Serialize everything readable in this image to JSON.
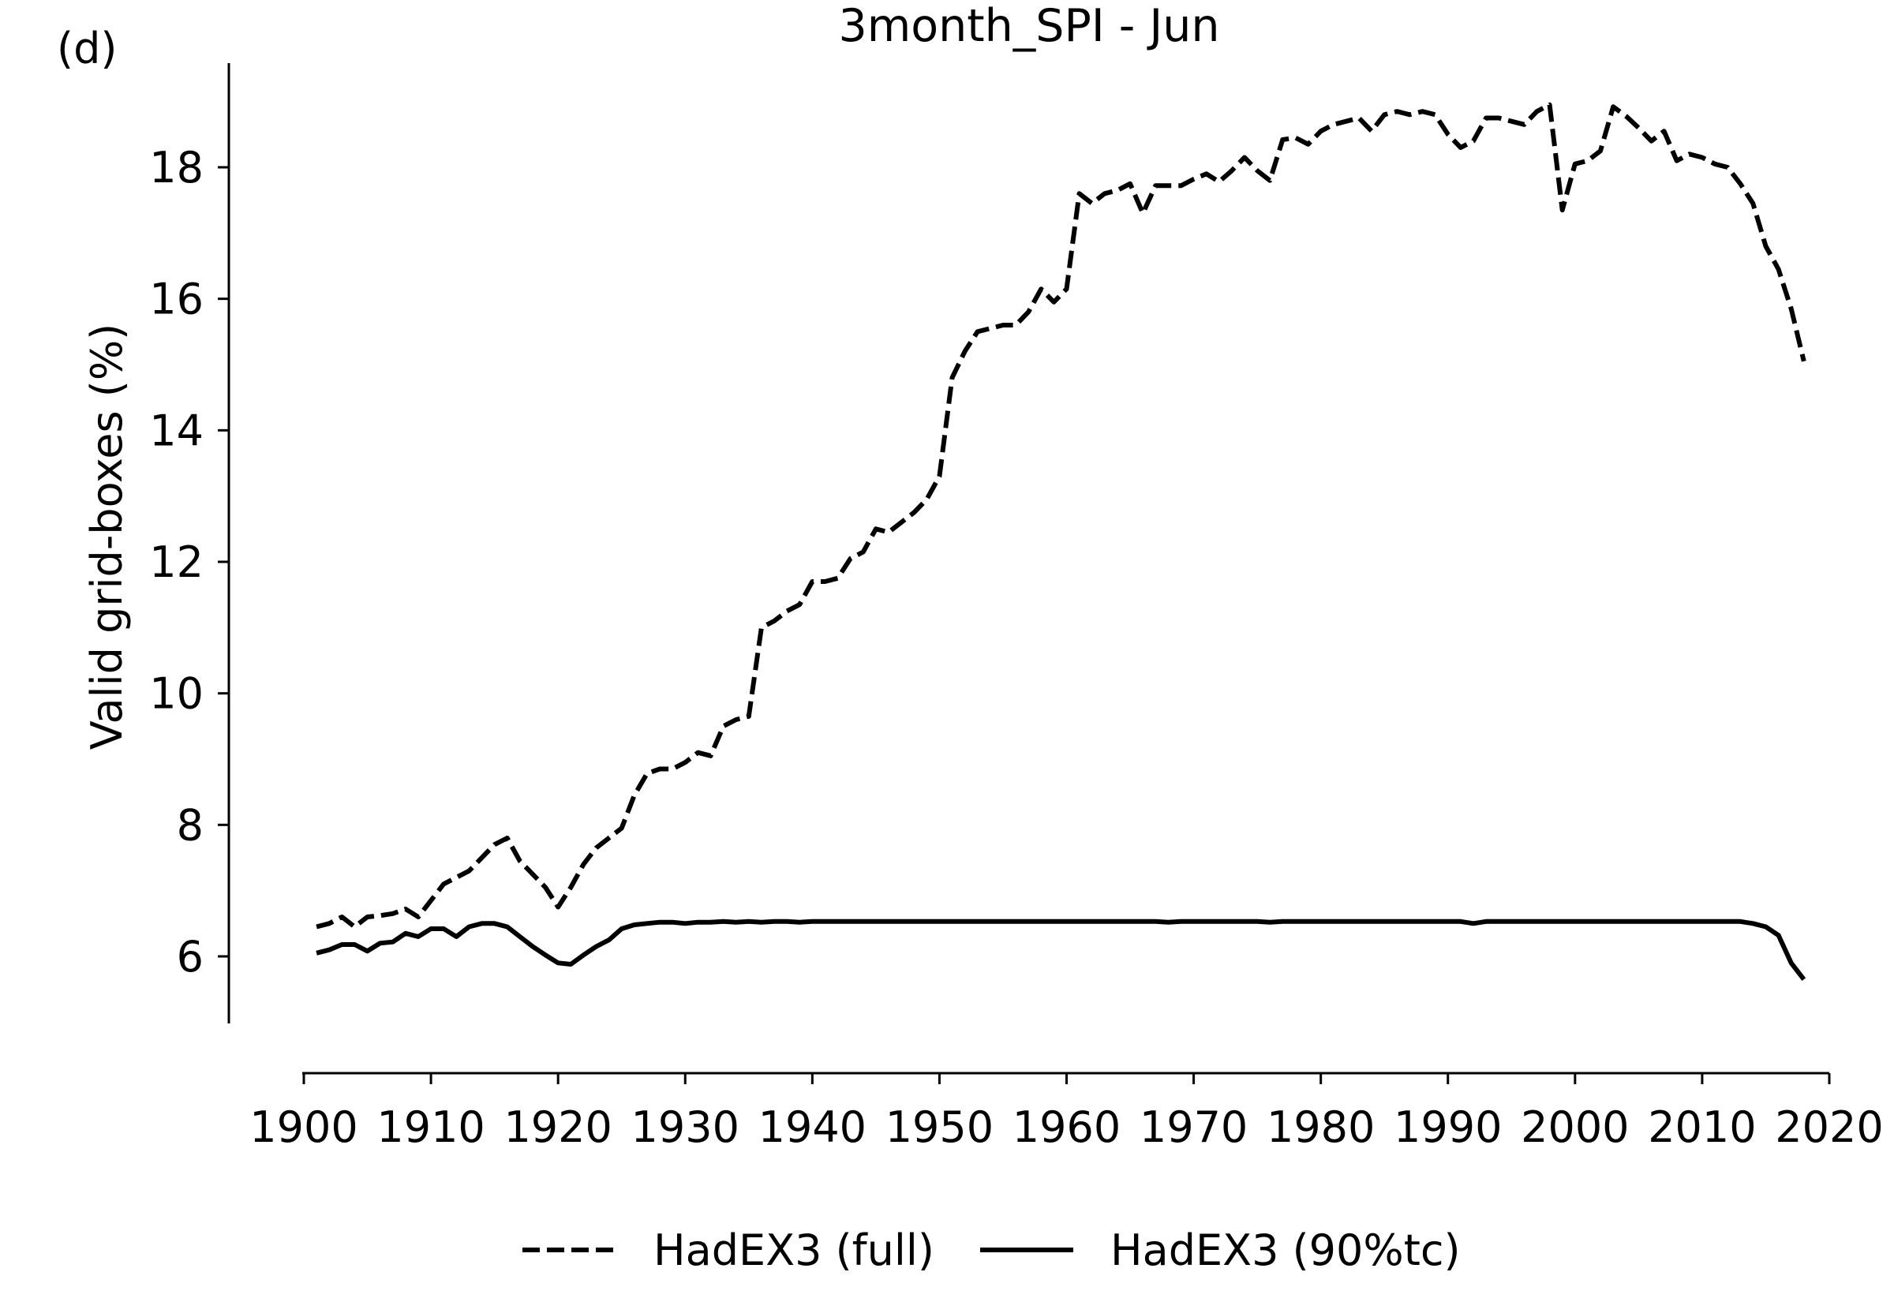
{
  "panel_label": "(d)",
  "chart_data": {
    "type": "line",
    "title": "3month_SPI - Jun",
    "xlabel": "",
    "ylabel": "Valid grid-boxes (%)",
    "xlim": [
      1900,
      2020
    ],
    "ylim": [
      5,
      19.6
    ],
    "x_ticks": [
      1900,
      1910,
      1920,
      1930,
      1940,
      1950,
      1960,
      1970,
      1980,
      1990,
      2000,
      2010,
      2020
    ],
    "x_tick_labels": [
      "1900",
      "1910",
      "1920",
      "1930",
      "1940",
      "1950",
      "1960",
      "1970",
      "1980",
      "1990",
      "2000",
      "2010",
      "2020"
    ],
    "y_ticks": [
      6,
      8,
      10,
      12,
      14,
      16,
      18
    ],
    "y_tick_labels": [
      "6",
      "8",
      "10",
      "12",
      "14",
      "16",
      "18"
    ],
    "grid": false,
    "legend_position": "bottom-center",
    "x": [
      1901,
      1902,
      1903,
      1904,
      1905,
      1906,
      1907,
      1908,
      1909,
      1910,
      1911,
      1912,
      1913,
      1914,
      1915,
      1916,
      1917,
      1918,
      1919,
      1920,
      1921,
      1922,
      1923,
      1924,
      1925,
      1926,
      1927,
      1928,
      1929,
      1930,
      1931,
      1932,
      1933,
      1934,
      1935,
      1936,
      1937,
      1938,
      1939,
      1940,
      1941,
      1942,
      1943,
      1944,
      1945,
      1946,
      1947,
      1948,
      1949,
      1950,
      1951,
      1952,
      1953,
      1954,
      1955,
      1956,
      1957,
      1958,
      1959,
      1960,
      1961,
      1962,
      1963,
      1964,
      1965,
      1966,
      1967,
      1968,
      1969,
      1970,
      1971,
      1972,
      1973,
      1974,
      1975,
      1976,
      1977,
      1978,
      1979,
      1980,
      1981,
      1982,
      1983,
      1984,
      1985,
      1986,
      1987,
      1988,
      1989,
      1990,
      1991,
      1992,
      1993,
      1994,
      1995,
      1996,
      1997,
      1998,
      1999,
      2000,
      2001,
      2002,
      2003,
      2004,
      2005,
      2006,
      2007,
      2008,
      2009,
      2010,
      2011,
      2012,
      2013,
      2014,
      2015,
      2016,
      2017,
      2018
    ],
    "series": [
      {
        "name": "HadEX3 (full)",
        "style": "dashed",
        "color": "#000000",
        "values": [
          6.45,
          6.5,
          6.6,
          6.45,
          6.6,
          6.62,
          6.65,
          6.72,
          6.6,
          6.85,
          7.1,
          7.2,
          7.3,
          7.5,
          7.7,
          7.8,
          7.45,
          7.25,
          7.05,
          6.75,
          7.05,
          7.4,
          7.65,
          7.8,
          7.95,
          8.45,
          8.78,
          8.85,
          8.85,
          8.95,
          9.1,
          9.05,
          9.5,
          9.6,
          9.65,
          11.0,
          11.1,
          11.25,
          11.35,
          11.7,
          11.7,
          11.75,
          12.05,
          12.15,
          12.5,
          12.45,
          12.6,
          12.75,
          12.95,
          13.3,
          14.8,
          15.2,
          15.5,
          15.55,
          15.6,
          15.6,
          15.8,
          16.15,
          15.95,
          16.15,
          17.6,
          17.45,
          17.6,
          17.65,
          17.75,
          17.3,
          17.72,
          17.72,
          17.72,
          17.82,
          17.9,
          17.78,
          17.95,
          18.15,
          17.95,
          17.8,
          18.42,
          18.45,
          18.35,
          18.55,
          18.65,
          18.7,
          18.75,
          18.55,
          18.8,
          18.85,
          18.8,
          18.85,
          18.8,
          18.5,
          18.3,
          18.4,
          18.75,
          18.75,
          18.7,
          18.65,
          18.85,
          18.95,
          17.35,
          18.05,
          18.1,
          18.25,
          18.92,
          18.78,
          18.6,
          18.4,
          18.55,
          18.1,
          18.2,
          18.15,
          18.05,
          18.0,
          17.75,
          17.45,
          16.8,
          16.45,
          15.85,
          15.05
        ]
      },
      {
        "name": "HadEX3 (90%tc)",
        "style": "solid",
        "color": "#000000",
        "values": [
          6.05,
          6.1,
          6.18,
          6.18,
          6.08,
          6.2,
          6.22,
          6.35,
          6.3,
          6.42,
          6.42,
          6.3,
          6.45,
          6.5,
          6.5,
          6.45,
          6.3,
          6.15,
          6.02,
          5.9,
          5.88,
          6.02,
          6.15,
          6.25,
          6.42,
          6.48,
          6.5,
          6.52,
          6.52,
          6.5,
          6.52,
          6.52,
          6.53,
          6.52,
          6.53,
          6.52,
          6.53,
          6.53,
          6.52,
          6.53,
          6.53,
          6.53,
          6.53,
          6.53,
          6.53,
          6.53,
          6.53,
          6.53,
          6.53,
          6.53,
          6.53,
          6.53,
          6.53,
          6.53,
          6.53,
          6.53,
          6.53,
          6.53,
          6.53,
          6.53,
          6.53,
          6.53,
          6.53,
          6.53,
          6.53,
          6.53,
          6.53,
          6.52,
          6.53,
          6.53,
          6.53,
          6.53,
          6.53,
          6.53,
          6.53,
          6.52,
          6.53,
          6.53,
          6.53,
          6.53,
          6.53,
          6.53,
          6.53,
          6.53,
          6.53,
          6.53,
          6.53,
          6.53,
          6.53,
          6.53,
          6.53,
          6.5,
          6.53,
          6.53,
          6.53,
          6.53,
          6.53,
          6.53,
          6.53,
          6.53,
          6.53,
          6.53,
          6.53,
          6.53,
          6.53,
          6.53,
          6.53,
          6.53,
          6.53,
          6.53,
          6.53,
          6.53,
          6.53,
          6.5,
          6.45,
          6.32,
          5.9,
          5.65
        ]
      }
    ]
  }
}
